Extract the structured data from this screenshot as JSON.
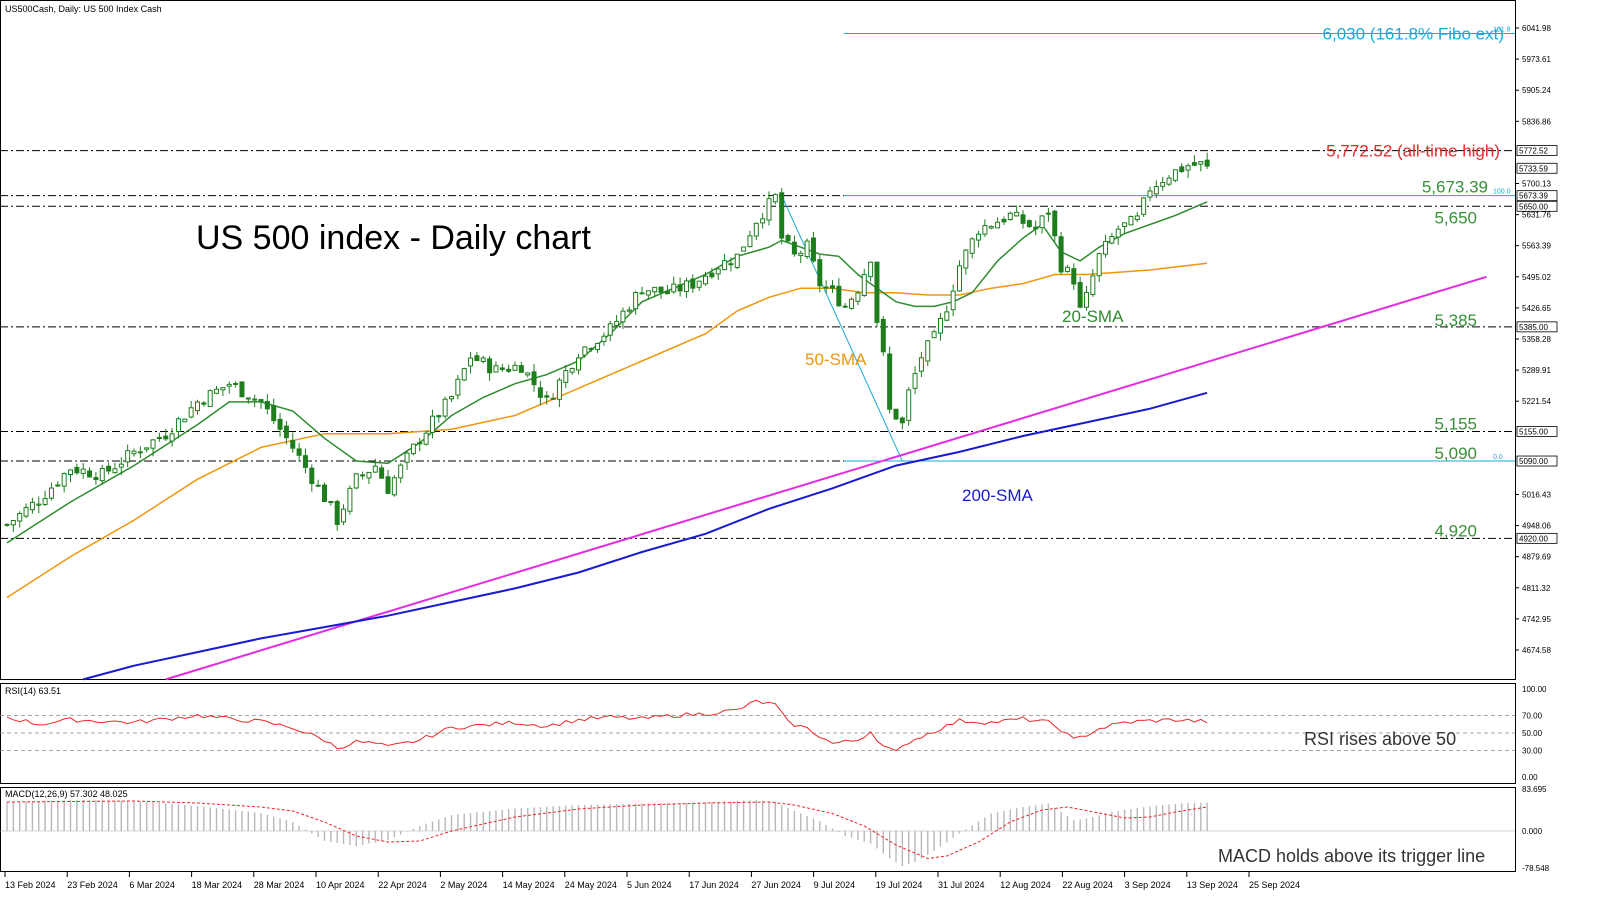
{
  "window": {
    "header": "US500Cash, Daily:  US 500 Index Cash",
    "rsi_header": "RSI(14) 63.51",
    "macd_header": "MACD(12,26,9) 57.302 48.025"
  },
  "chart_data": {
    "type": "candlestick",
    "title": "US 500 index - Daily chart",
    "main": {
      "ylim": [
        4610,
        6110
      ],
      "y_ticks": [
        "6041.98",
        "5973.61",
        "5905.24",
        "5836.86",
        "5700.13",
        "5631.76",
        "5563.39",
        "5495.02",
        "5426.65",
        "5358.28",
        "5289.91",
        "5221.54",
        "5016.43",
        "4948.06",
        "4879.69",
        "4811.32",
        "4742.95",
        "4674.58"
      ],
      "x_dates": [
        "13 Feb 2024",
        "23 Feb 2024",
        "6 Mar 2024",
        "18 Mar 2024",
        "28 Mar 2024",
        "10 Apr 2024",
        "22 Apr 2024",
        "2 May 2024",
        "14 May 2024",
        "24 May 2024",
        "5 Jun 2024",
        "17 Jun 2024",
        "27 Jun 2024",
        "9 Jul 2024",
        "19 Jul 2024",
        "31 Jul 2024",
        "12 Aug 2024",
        "22 Aug 2024",
        "3 Sep 2024",
        "13 Sep 2024",
        "25 Sep 2024"
      ],
      "close_path": [
        [
          0,
          4950
        ],
        [
          5,
          5005
        ],
        [
          10,
          5075
        ],
        [
          15,
          5060
        ],
        [
          20,
          5110
        ],
        [
          25,
          5150
        ],
        [
          30,
          5220
        ],
        [
          35,
          5260
        ],
        [
          40,
          5220
        ],
        [
          45,
          5120
        ],
        [
          50,
          5010
        ],
        [
          52,
          4960
        ],
        [
          55,
          5050
        ],
        [
          58,
          5080
        ],
        [
          60,
          5030
        ],
        [
          65,
          5140
        ],
        [
          70,
          5230
        ],
        [
          73,
          5320
        ],
        [
          77,
          5290
        ],
        [
          81,
          5300
        ],
        [
          85,
          5220
        ],
        [
          90,
          5330
        ],
        [
          95,
          5380
        ],
        [
          100,
          5470
        ],
        [
          104,
          5460
        ],
        [
          108,
          5480
        ],
        [
          112,
          5520
        ],
        [
          115,
          5540
        ],
        [
          118,
          5620
        ],
        [
          121,
          5670
        ],
        [
          122,
          5580
        ],
        [
          124,
          5540
        ],
        [
          126,
          5560
        ],
        [
          128,
          5480
        ],
        [
          130,
          5460
        ],
        [
          132,
          5430
        ],
        [
          134,
          5470
        ],
        [
          136,
          5540
        ],
        [
          137,
          5400
        ],
        [
          138,
          5320
        ],
        [
          139,
          5200
        ],
        [
          140,
          5190
        ],
        [
          141,
          5170
        ],
        [
          142,
          5240
        ],
        [
          144,
          5320
        ],
        [
          146,
          5360
        ],
        [
          148,
          5430
        ],
        [
          150,
          5520
        ],
        [
          153,
          5600
        ],
        [
          158,
          5630
        ],
        [
          162,
          5600
        ],
        [
          164,
          5640
        ],
        [
          166,
          5520
        ],
        [
          168,
          5490
        ],
        [
          169,
          5420
        ],
        [
          170,
          5450
        ],
        [
          172,
          5540
        ],
        [
          175,
          5600
        ],
        [
          178,
          5620
        ],
        [
          180,
          5690
        ],
        [
          183,
          5720
        ],
        [
          186,
          5740
        ],
        [
          188,
          5742
        ],
        [
          189,
          5733
        ]
      ],
      "sma20": [
        [
          0,
          4910
        ],
        [
          10,
          5000
        ],
        [
          20,
          5080
        ],
        [
          30,
          5170
        ],
        [
          35,
          5220
        ],
        [
          40,
          5220
        ],
        [
          45,
          5200
        ],
        [
          50,
          5140
        ],
        [
          55,
          5090
        ],
        [
          60,
          5085
        ],
        [
          65,
          5130
        ],
        [
          70,
          5190
        ],
        [
          75,
          5230
        ],
        [
          80,
          5260
        ],
        [
          85,
          5280
        ],
        [
          90,
          5310
        ],
        [
          95,
          5370
        ],
        [
          100,
          5440
        ],
        [
          105,
          5470
        ],
        [
          110,
          5500
        ],
        [
          115,
          5540
        ],
        [
          120,
          5560
        ],
        [
          122,
          5575
        ],
        [
          125,
          5560
        ],
        [
          128,
          5545
        ],
        [
          131,
          5540
        ],
        [
          134,
          5500
        ],
        [
          137,
          5470
        ],
        [
          140,
          5440
        ],
        [
          143,
          5430
        ],
        [
          146,
          5430
        ],
        [
          149,
          5440
        ],
        [
          152,
          5460
        ],
        [
          156,
          5530
        ],
        [
          160,
          5580
        ],
        [
          163,
          5610
        ],
        [
          166,
          5550
        ],
        [
          169,
          5530
        ],
        [
          172,
          5560
        ],
        [
          176,
          5590
        ],
        [
          180,
          5610
        ],
        [
          184,
          5630
        ],
        [
          189,
          5660
        ]
      ],
      "sma50": [
        [
          0,
          4790
        ],
        [
          10,
          4880
        ],
        [
          20,
          4960
        ],
        [
          30,
          5050
        ],
        [
          40,
          5120
        ],
        [
          50,
          5150
        ],
        [
          60,
          5150
        ],
        [
          70,
          5160
        ],
        [
          80,
          5190
        ],
        [
          90,
          5250
        ],
        [
          100,
          5310
        ],
        [
          110,
          5370
        ],
        [
          115,
          5420
        ],
        [
          120,
          5450
        ],
        [
          125,
          5470
        ],
        [
          130,
          5470
        ],
        [
          135,
          5460
        ],
        [
          140,
          5460
        ],
        [
          145,
          5455
        ],
        [
          150,
          5455
        ],
        [
          155,
          5470
        ],
        [
          160,
          5480
        ],
        [
          165,
          5500
        ],
        [
          170,
          5500
        ],
        [
          175,
          5505
        ],
        [
          180,
          5510
        ],
        [
          189,
          5525
        ]
      ],
      "sma200": [
        [
          12,
          4610
        ],
        [
          20,
          4640
        ],
        [
          30,
          4670
        ],
        [
          40,
          4700
        ],
        [
          50,
          4725
        ],
        [
          60,
          4750
        ],
        [
          70,
          4780
        ],
        [
          80,
          4810
        ],
        [
          90,
          4845
        ],
        [
          100,
          4890
        ],
        [
          110,
          4930
        ],
        [
          120,
          4985
        ],
        [
          130,
          5030
        ],
        [
          140,
          5080
        ],
        [
          150,
          5110
        ],
        [
          160,
          5145
        ],
        [
          170,
          5175
        ],
        [
          180,
          5205
        ],
        [
          189,
          5240
        ]
      ],
      "rsi_line": [
        [
          0,
          68
        ],
        [
          5,
          60
        ],
        [
          10,
          65
        ],
        [
          20,
          62
        ],
        [
          30,
          70
        ],
        [
          35,
          66
        ],
        [
          40,
          63
        ],
        [
          45,
          56
        ],
        [
          50,
          42
        ],
        [
          52,
          33
        ],
        [
          55,
          40
        ],
        [
          58,
          38
        ],
        [
          60,
          34
        ],
        [
          65,
          42
        ],
        [
          70,
          56
        ],
        [
          80,
          62
        ],
        [
          85,
          58
        ],
        [
          90,
          65
        ],
        [
          95,
          68
        ],
        [
          100,
          66
        ],
        [
          105,
          70
        ],
        [
          110,
          72
        ],
        [
          115,
          76
        ],
        [
          118,
          86
        ],
        [
          121,
          82
        ],
        [
          123,
          62
        ],
        [
          126,
          55
        ],
        [
          130,
          38
        ],
        [
          134,
          42
        ],
        [
          136,
          52
        ],
        [
          138,
          35
        ],
        [
          140,
          28
        ],
        [
          142,
          40
        ],
        [
          146,
          52
        ],
        [
          150,
          64
        ],
        [
          155,
          62
        ],
        [
          160,
          66
        ],
        [
          164,
          62
        ],
        [
          166,
          54
        ],
        [
          168,
          42
        ],
        [
          170,
          48
        ],
        [
          172,
          55
        ],
        [
          176,
          62
        ],
        [
          180,
          64
        ],
        [
          184,
          65
        ],
        [
          189,
          63
        ]
      ],
      "macd_hist": [
        [
          0,
          58
        ],
        [
          10,
          62
        ],
        [
          20,
          60
        ],
        [
          30,
          50
        ],
        [
          40,
          36
        ],
        [
          45,
          18
        ],
        [
          50,
          -20
        ],
        [
          55,
          -30
        ],
        [
          60,
          -18
        ],
        [
          65,
          10
        ],
        [
          70,
          32
        ],
        [
          80,
          45
        ],
        [
          90,
          52
        ],
        [
          100,
          55
        ],
        [
          110,
          57
        ],
        [
          115,
          60
        ],
        [
          118,
          62
        ],
        [
          121,
          58
        ],
        [
          124,
          40
        ],
        [
          128,
          20
        ],
        [
          132,
          -10
        ],
        [
          136,
          -25
        ],
        [
          139,
          -55
        ],
        [
          141,
          -70
        ],
        [
          143,
          -62
        ],
        [
          146,
          -40
        ],
        [
          150,
          -5
        ],
        [
          155,
          35
        ],
        [
          160,
          48
        ],
        [
          164,
          55
        ],
        [
          166,
          38
        ],
        [
          168,
          22
        ],
        [
          170,
          25
        ],
        [
          174,
          38
        ],
        [
          178,
          46
        ],
        [
          182,
          52
        ],
        [
          186,
          56
        ],
        [
          189,
          57
        ]
      ],
      "macd_signal": [
        [
          0,
          58
        ],
        [
          20,
          60
        ],
        [
          30,
          56
        ],
        [
          40,
          48
        ],
        [
          45,
          40
        ],
        [
          50,
          18
        ],
        [
          55,
          -10
        ],
        [
          60,
          -22
        ],
        [
          65,
          -20
        ],
        [
          70,
          0
        ],
        [
          80,
          28
        ],
        [
          90,
          44
        ],
        [
          100,
          52
        ],
        [
          110,
          56
        ],
        [
          120,
          58
        ],
        [
          124,
          52
        ],
        [
          130,
          35
        ],
        [
          135,
          10
        ],
        [
          140,
          -28
        ],
        [
          145,
          -55
        ],
        [
          148,
          -50
        ],
        [
          153,
          -22
        ],
        [
          158,
          18
        ],
        [
          163,
          42
        ],
        [
          167,
          48
        ],
        [
          172,
          36
        ],
        [
          176,
          26
        ],
        [
          180,
          28
        ],
        [
          184,
          38
        ],
        [
          189,
          48
        ]
      ]
    },
    "levels": [
      {
        "label": "6,030 (161.8% Fibo ext)",
        "value": 6030,
        "color": "#1ba8d4",
        "side_tag": "161.8"
      },
      {
        "label": "5,772.52 (all-time high)",
        "value": 5772.52,
        "color": "#e8282b",
        "axis_tag": "5772.52"
      },
      {
        "label": "5733.59",
        "value": 5733.59,
        "axis_tag": "5733.59"
      },
      {
        "label": "5,673.39",
        "value": 5673.39,
        "color": "#3a8f3a",
        "axis_tag": "5673.39",
        "side_tag": "100.0"
      },
      {
        "label": "5,650",
        "value": 5650,
        "color": "#3a8f3a",
        "axis_tag": "5650.00"
      },
      {
        "label": "5,385",
        "value": 5385,
        "color": "#3a8f3a",
        "axis_tag": "5385.00"
      },
      {
        "label": "5,155",
        "value": 5155,
        "color": "#3a8f3a",
        "axis_tag": "5155.00"
      },
      {
        "label": "5,090",
        "value": 5090,
        "color": "#3a8f3a",
        "axis_tag": "5090.00",
        "side_tag": "0.0"
      },
      {
        "label": "4,920",
        "value": 4920,
        "color": "#3a8f3a",
        "axis_tag": "4920.00"
      }
    ],
    "annotations": {
      "sma20": "20-SMA",
      "sma50": "50-SMA",
      "sma200": "200-SMA",
      "rsi_note": "RSI rises above 50",
      "macd_note": "MACD holds above its trigger line"
    },
    "rsi": {
      "ticks": [
        "100.00",
        "70.00",
        "50.00",
        "30.00",
        "0.00"
      ]
    },
    "macd": {
      "ticks": [
        "83.695",
        "0.000",
        "-78.548"
      ]
    },
    "colors": {
      "sma20": "#2e8b2e",
      "sma50": "#f0960e",
      "sma200": "#1a1ad0",
      "trend": "#e32de3",
      "fibo": "#1ba8d4",
      "rsi": "#e8282b",
      "candle": "#1e7e1e"
    }
  }
}
